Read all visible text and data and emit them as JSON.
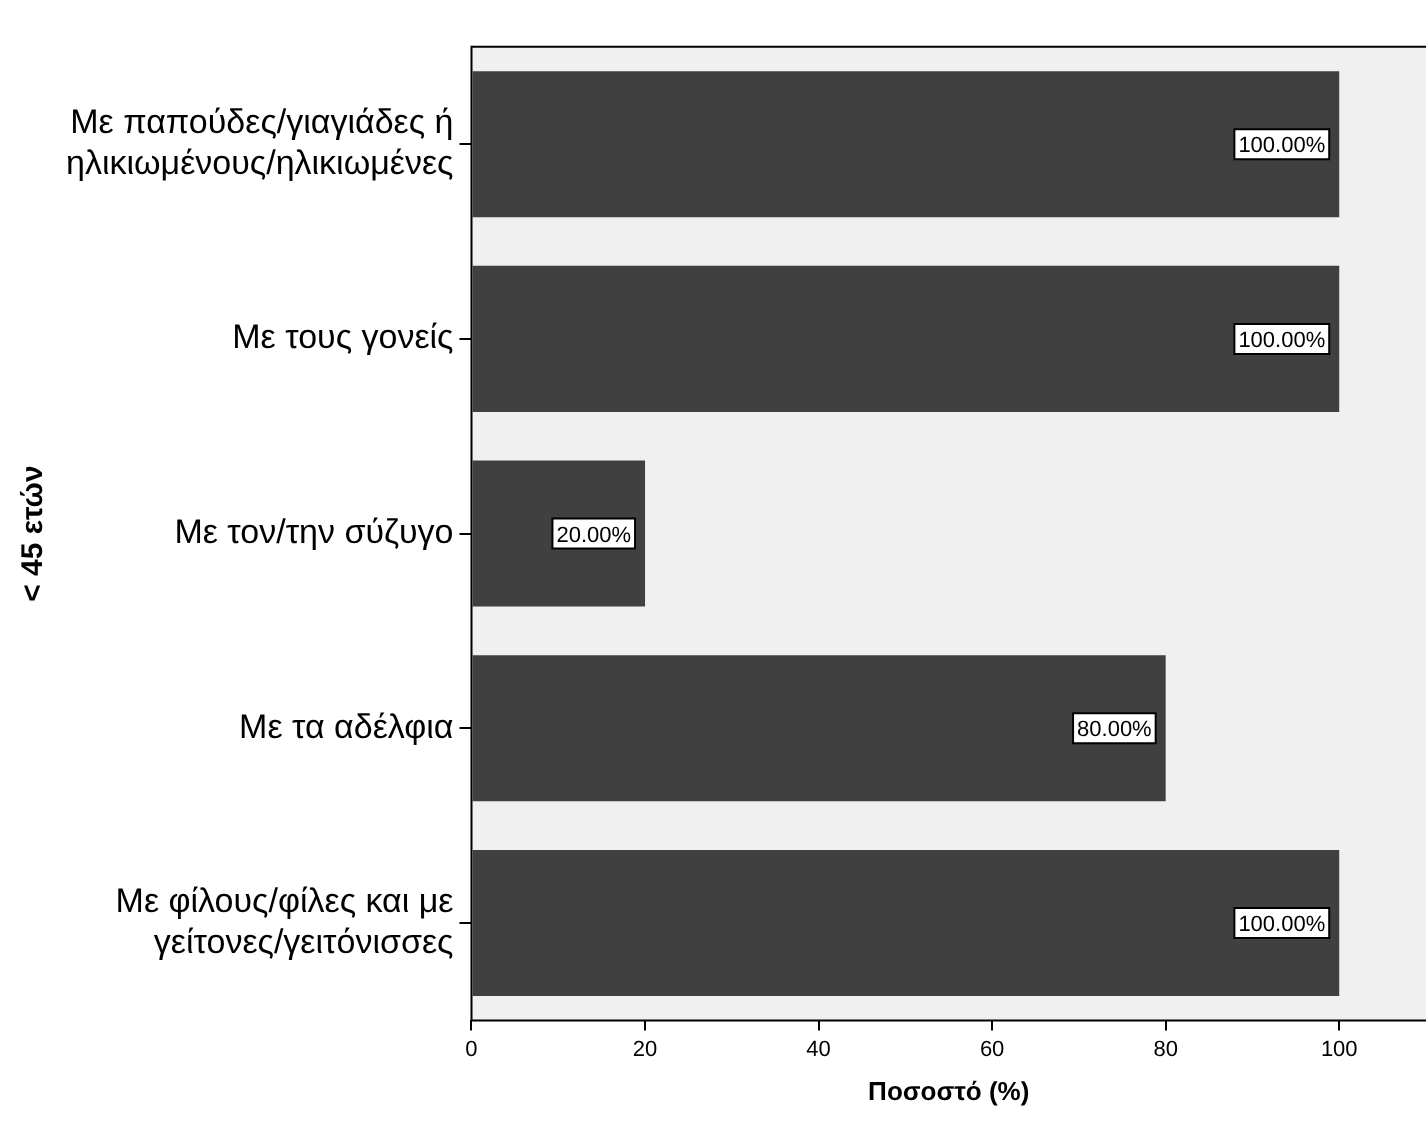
{
  "chart_data": {
    "type": "bar",
    "orientation": "horizontal",
    "xlabel": "Ποσοστό (%)",
    "ylabel": "< 45 ετών",
    "categories": [
      "Με παπούδες/γιαγιάδες ή ηλικιωμένους/ηλικιωμένες",
      "Με τους γονείς",
      "Με τον/την σύζυγο",
      "Με τα αδέλφια",
      "Με φίλους/φίλες και με γείτονες/γειτόνισσες"
    ],
    "values": [
      100,
      100,
      20,
      80,
      100
    ],
    "value_labels": [
      "100.00%",
      "100.00%",
      "20.00%",
      "80.00%",
      "100.00%"
    ],
    "color": "#404040",
    "xlim": [
      0,
      110
    ],
    "xticks": [
      0,
      20,
      40,
      60,
      80,
      100
    ],
    "grid": false,
    "legend": false
  }
}
